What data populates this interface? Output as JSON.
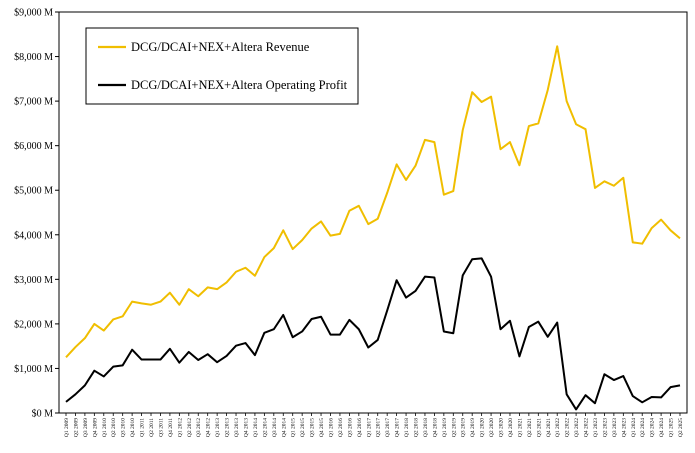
{
  "chart_data": {
    "type": "line",
    "x": [
      "Q1 2009",
      "Q2 2009",
      "Q3 2009",
      "Q4 2009",
      "Q1 2010",
      "Q2 2010",
      "Q3 2010",
      "Q4 2010",
      "Q1 2011",
      "Q2 2011",
      "Q3 2011",
      "Q4 2011",
      "Q1 2012",
      "Q2 2012",
      "Q3 2012",
      "Q4 2012",
      "Q1 2013",
      "Q2 2013",
      "Q3 2013",
      "Q4 2013",
      "Q1 2014",
      "Q2 2014",
      "Q3 2014",
      "Q4 2014",
      "Q1 2015",
      "Q2 2015",
      "Q3 2015",
      "Q4 2015",
      "Q1 2016",
      "Q2 2016",
      "Q3 2016",
      "Q4 2016",
      "Q1 2017",
      "Q2 2017",
      "Q3 2017",
      "Q4 2017",
      "Q1 2018",
      "Q2 2018",
      "Q3 2018",
      "Q4 2018",
      "Q1 2019",
      "Q2 2019",
      "Q3 2019",
      "Q4 2019",
      "Q1 2020",
      "Q2 2020",
      "Q3 2020",
      "Q4 2020",
      "Q1 2021",
      "Q2 2021",
      "Q3 2021",
      "Q4 2021",
      "Q1 2022",
      "Q2 2022",
      "Q3 2022",
      "Q4 2022",
      "Q1 2023",
      "Q2 2023",
      "Q3 2023",
      "Q4 2023",
      "Q1 2024",
      "Q2 2024",
      "Q3 2024",
      "Q4 2024",
      "Q1 2025",
      "Q2 2025"
    ],
    "series": [
      {
        "name": "DCG/DCAI+NEX+Altera Revenue",
        "color": "#F0BE00",
        "values": [
          1250,
          1480,
          1680,
          2000,
          1850,
          2100,
          2170,
          2500,
          2460,
          2430,
          2500,
          2700,
          2430,
          2780,
          2620,
          2820,
          2780,
          2930,
          3170,
          3260,
          3080,
          3500,
          3700,
          4100,
          3680,
          3880,
          4140,
          4300,
          3980,
          4020,
          4540,
          4650,
          4240,
          4360,
          4940,
          5580,
          5230,
          5550,
          6130,
          6080,
          4900,
          4980,
          6350,
          7200,
          6980,
          7100,
          5920,
          6080,
          5560,
          6440,
          6500,
          7250,
          8230,
          7000,
          6480,
          6370,
          5050,
          5200,
          5100,
          5280,
          3830,
          3800,
          4150,
          4340,
          4100,
          3920
        ]
      },
      {
        "name": "DCG/DCAI+NEX+Altera Operating Profit",
        "color": "#000000",
        "values": [
          250,
          420,
          620,
          950,
          820,
          1040,
          1070,
          1420,
          1200,
          1200,
          1200,
          1440,
          1130,
          1370,
          1190,
          1320,
          1140,
          1280,
          1510,
          1570,
          1300,
          1800,
          1880,
          2200,
          1700,
          1830,
          2110,
          2160,
          1760,
          1760,
          2090,
          1880,
          1470,
          1640,
          2300,
          2980,
          2590,
          2740,
          3060,
          3040,
          1830,
          1790,
          3090,
          3450,
          3470,
          3060,
          1880,
          2070,
          1270,
          1930,
          2050,
          1710,
          2030,
          420,
          80,
          400,
          220,
          870,
          740,
          830,
          380,
          240,
          360,
          350,
          580,
          620
        ]
      }
    ],
    "yticks": [
      "$0 M",
      "$1,000 M",
      "$2,000 M",
      "$3,000 M",
      "$4,000 M",
      "$5,000 M",
      "$6,000 M",
      "$7,000 M",
      "$8,000 M",
      "$9,000 M"
    ],
    "ylim": [
      0,
      9000
    ],
    "grid": false,
    "legend": "top-left"
  }
}
